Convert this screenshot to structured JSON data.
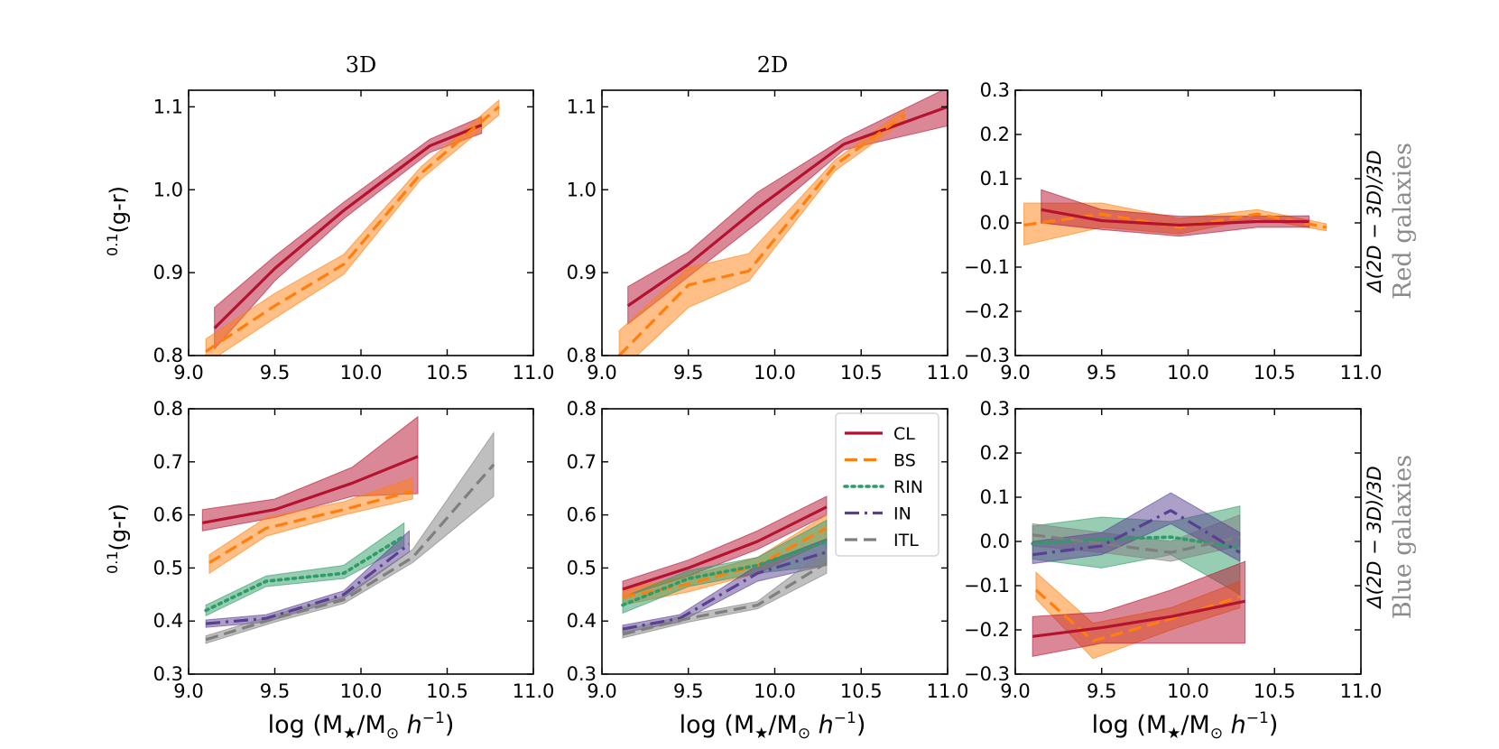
{
  "labels": {
    "col_3d": "3D",
    "col_2d": "2D",
    "ylabel_sup": "0.1",
    "ylabel_main": "(g-r)",
    "xlabel_main": "log (M",
    "xlabel_star": "★",
    "xlabel_mid": "/M",
    "xlabel_sun": "⊙",
    "xlabel_h": " h",
    "xlabel_exp": "−1",
    "xlabel_close": ")",
    "diff_label": "Δ(2D − 3D)/3D",
    "red_group": "Red galaxies",
    "blue_group": "Blue galaxies"
  },
  "legend": [
    {
      "key": "CL",
      "label": "CL"
    },
    {
      "key": "BS",
      "label": "BS"
    },
    {
      "key": "RIN",
      "label": "RIN"
    },
    {
      "key": "IN",
      "label": "IN"
    },
    {
      "key": "ITL",
      "label": "ITL"
    }
  ],
  "styles": {
    "CL": {
      "color": "#b5122f",
      "dash": "",
      "width": 3.2
    },
    "BS": {
      "color": "#ff7f0e",
      "dash": "14,7",
      "width": 3.2
    },
    "RIN": {
      "color": "#2e9c68",
      "dash": "3,5",
      "width": 3.6
    },
    "IN": {
      "color": "#5a3f92",
      "dash": "16,6,3,6",
      "width": 3.2
    },
    "ITL": {
      "color": "#7f7f7f",
      "dash": "14,7",
      "width": 3.2
    }
  },
  "chart_data": [
    {
      "id": "red-3d",
      "type": "line",
      "title": "3D",
      "xlabel": "",
      "ylabel": "0.1(g-r)",
      "xlim": [
        9.0,
        11.0
      ],
      "ylim": [
        0.8,
        1.12
      ],
      "xticks": [
        "9.0",
        "9.5",
        "10.0",
        "10.5",
        "11.0"
      ],
      "yticks": [
        "0.8",
        "0.9",
        "1.0",
        "1.1"
      ],
      "series": [
        {
          "name": "CL",
          "x": [
            9.15,
            9.5,
            9.9,
            10.4,
            10.7
          ],
          "y": [
            0.833,
            0.905,
            0.975,
            1.053,
            1.078
          ],
          "lo": [
            0.808,
            0.89,
            0.965,
            1.045,
            1.068
          ],
          "hi": [
            0.858,
            0.92,
            0.985,
            1.061,
            1.088
          ]
        },
        {
          "name": "BS",
          "x": [
            9.1,
            9.5,
            9.9,
            10.35,
            10.8
          ],
          "y": [
            0.805,
            0.86,
            0.91,
            1.02,
            1.1
          ],
          "lo": [
            0.79,
            0.845,
            0.898,
            1.013,
            1.09
          ],
          "hi": [
            0.82,
            0.875,
            0.922,
            1.028,
            1.108
          ]
        }
      ]
    },
    {
      "id": "red-2d",
      "type": "line",
      "title": "2D",
      "xlabel": "",
      "ylabel": "",
      "xlim": [
        9.0,
        11.0
      ],
      "ylim": [
        0.8,
        1.12
      ],
      "xticks": [
        "9.0",
        "9.5",
        "10.0",
        "10.5",
        "11.0"
      ],
      "yticks": [
        "0.8",
        "0.9",
        "1.0",
        "1.1"
      ],
      "series": [
        {
          "name": "CL",
          "x": [
            9.15,
            9.5,
            9.9,
            10.4,
            11.0
          ],
          "y": [
            0.86,
            0.91,
            0.978,
            1.055,
            1.1
          ],
          "lo": [
            0.838,
            0.895,
            0.96,
            1.048,
            1.077
          ],
          "hi": [
            0.883,
            0.925,
            0.997,
            1.062,
            1.123
          ]
        },
        {
          "name": "BS",
          "x": [
            9.1,
            9.5,
            9.85,
            10.35,
            10.75
          ],
          "y": [
            0.8,
            0.885,
            0.902,
            1.03,
            1.09
          ],
          "lo": [
            0.78,
            0.858,
            0.89,
            1.023,
            1.083
          ],
          "hi": [
            0.83,
            0.906,
            0.923,
            1.036,
            1.097
          ]
        }
      ]
    },
    {
      "id": "red-diff",
      "type": "line",
      "title": "",
      "xlabel": "",
      "ylabel": "Δ(2D − 3D)/3D",
      "xlim": [
        9.0,
        11.0
      ],
      "ylim": [
        -0.3,
        0.3
      ],
      "xticks": [
        "9.0",
        "9.5",
        "10.0",
        "10.5",
        "11.0"
      ],
      "yticks": [
        "−0.3",
        "−0.2",
        "−0.1",
        "0.0",
        "0.1",
        "0.2",
        "0.3"
      ],
      "series": [
        {
          "name": "BS",
          "x": [
            9.05,
            9.5,
            9.95,
            10.4,
            10.8
          ],
          "y": [
            -0.005,
            0.02,
            -0.01,
            0.02,
            -0.01
          ],
          "lo": [
            -0.05,
            -0.01,
            -0.025,
            0.01,
            -0.018
          ],
          "hi": [
            0.045,
            0.045,
            0.01,
            0.03,
            -0.002
          ]
        },
        {
          "name": "CL",
          "x": [
            9.15,
            9.5,
            9.95,
            10.4,
            10.7
          ],
          "y": [
            0.03,
            0.005,
            -0.005,
            0.003,
            0.003
          ],
          "lo": [
            0.0,
            -0.015,
            -0.03,
            -0.01,
            -0.01
          ],
          "hi": [
            0.075,
            0.03,
            0.015,
            0.015,
            0.016
          ]
        }
      ]
    },
    {
      "id": "blue-3d",
      "type": "line",
      "title": "",
      "xlabel": "log (M★/M⊙ h−1)",
      "ylabel": "0.1(g-r)",
      "xlim": [
        9.0,
        11.0
      ],
      "ylim": [
        0.3,
        0.8
      ],
      "xticks": [
        "9.0",
        "9.5",
        "10.0",
        "10.5",
        "11.0"
      ],
      "yticks": [
        "0.3",
        "0.4",
        "0.5",
        "0.6",
        "0.7",
        "0.8"
      ],
      "series": [
        {
          "name": "CL",
          "x": [
            9.08,
            9.5,
            9.95,
            10.33
          ],
          "y": [
            0.585,
            0.61,
            0.66,
            0.71
          ],
          "lo": [
            0.57,
            0.595,
            0.635,
            0.64
          ],
          "hi": [
            0.61,
            0.63,
            0.69,
            0.785
          ]
        },
        {
          "name": "BS",
          "x": [
            9.12,
            9.45,
            9.9,
            10.3
          ],
          "y": [
            0.51,
            0.575,
            0.61,
            0.645
          ],
          "lo": [
            0.49,
            0.56,
            0.6,
            0.63
          ],
          "hi": [
            0.525,
            0.595,
            0.625,
            0.67
          ]
        },
        {
          "name": "RIN",
          "x": [
            9.1,
            9.45,
            9.9,
            10.25
          ],
          "y": [
            0.42,
            0.475,
            0.49,
            0.56
          ],
          "lo": [
            0.41,
            0.465,
            0.48,
            0.54
          ],
          "hi": [
            0.43,
            0.485,
            0.505,
            0.585
          ]
        },
        {
          "name": "IN",
          "x": [
            9.1,
            9.45,
            9.9,
            10.28
          ],
          "y": [
            0.395,
            0.405,
            0.45,
            0.545
          ],
          "lo": [
            0.388,
            0.398,
            0.443,
            0.53
          ],
          "hi": [
            0.402,
            0.412,
            0.457,
            0.57
          ]
        },
        {
          "name": "ITL",
          "x": [
            9.1,
            9.5,
            9.9,
            10.3,
            10.77
          ],
          "y": [
            0.365,
            0.405,
            0.44,
            0.52,
            0.695
          ],
          "lo": [
            0.358,
            0.398,
            0.433,
            0.51,
            0.635
          ],
          "hi": [
            0.372,
            0.412,
            0.447,
            0.535,
            0.755
          ]
        }
      ]
    },
    {
      "id": "blue-2d",
      "type": "line",
      "title": "",
      "xlabel": "log (M★/M⊙ h−1)",
      "ylabel": "",
      "xlim": [
        9.0,
        11.0
      ],
      "ylim": [
        0.3,
        0.8
      ],
      "xticks": [
        "9.0",
        "9.5",
        "10.0",
        "10.5",
        "11.0"
      ],
      "yticks": [
        "0.3",
        "0.4",
        "0.5",
        "0.6",
        "0.7",
        "0.8"
      ],
      "series": [
        {
          "name": "CL",
          "x": [
            9.12,
            9.5,
            9.9,
            10.3
          ],
          "y": [
            0.46,
            0.5,
            0.55,
            0.615
          ],
          "lo": [
            0.445,
            0.485,
            0.535,
            0.6
          ],
          "hi": [
            0.475,
            0.515,
            0.57,
            0.635
          ]
        },
        {
          "name": "BS",
          "x": [
            9.12,
            9.5,
            9.9,
            10.3
          ],
          "y": [
            0.445,
            0.47,
            0.505,
            0.575
          ],
          "lo": [
            0.43,
            0.455,
            0.49,
            0.55
          ],
          "hi": [
            0.46,
            0.485,
            0.52,
            0.6
          ]
        },
        {
          "name": "RIN",
          "x": [
            9.12,
            9.5,
            9.9,
            10.3
          ],
          "y": [
            0.43,
            0.48,
            0.505,
            0.55
          ],
          "lo": [
            0.415,
            0.465,
            0.49,
            0.505
          ],
          "hi": [
            0.445,
            0.495,
            0.52,
            0.59
          ]
        },
        {
          "name": "IN",
          "x": [
            9.12,
            9.45,
            9.9,
            10.3
          ],
          "y": [
            0.385,
            0.405,
            0.49,
            0.53
          ],
          "lo": [
            0.378,
            0.398,
            0.475,
            0.505
          ],
          "hi": [
            0.392,
            0.412,
            0.505,
            0.555
          ]
        },
        {
          "name": "ITL",
          "x": [
            9.12,
            9.5,
            9.9,
            10.3
          ],
          "y": [
            0.375,
            0.405,
            0.43,
            0.51
          ],
          "lo": [
            0.368,
            0.398,
            0.423,
            0.49
          ],
          "hi": [
            0.382,
            0.412,
            0.437,
            0.535
          ]
        }
      ]
    },
    {
      "id": "blue-diff",
      "type": "line",
      "title": "",
      "xlabel": "log (M★/M⊙ h−1)",
      "ylabel": "Δ(2D − 3D)/3D",
      "xlim": [
        9.0,
        11.0
      ],
      "ylim": [
        -0.3,
        0.3
      ],
      "xticks": [
        "9.0",
        "9.5",
        "10.0",
        "10.5",
        "11.0"
      ],
      "yticks": [
        "−0.3",
        "−0.2",
        "−0.1",
        "0.0",
        "0.1",
        "0.2",
        "0.3"
      ],
      "series": [
        {
          "name": "RIN",
          "x": [
            9.1,
            9.5,
            9.9,
            10.3
          ],
          "y": [
            -0.005,
            0.005,
            0.01,
            -0.015
          ],
          "lo": [
            -0.04,
            -0.06,
            -0.03,
            -0.12
          ],
          "hi": [
            0.035,
            0.055,
            0.045,
            0.08
          ]
        },
        {
          "name": "ITL",
          "x": [
            9.1,
            9.5,
            9.9,
            10.3
          ],
          "y": [
            0.015,
            -0.005,
            -0.025,
            0.01
          ],
          "lo": [
            -0.01,
            -0.025,
            -0.045,
            -0.01
          ],
          "hi": [
            0.04,
            0.02,
            0.0,
            0.06
          ]
        },
        {
          "name": "IN",
          "x": [
            9.1,
            9.5,
            9.9,
            10.3
          ],
          "y": [
            -0.03,
            -0.01,
            0.07,
            -0.025
          ],
          "lo": [
            -0.05,
            -0.03,
            0.04,
            -0.045
          ],
          "hi": [
            0.0,
            0.02,
            0.11,
            0.02
          ]
        },
        {
          "name": "BS",
          "x": [
            9.12,
            9.45,
            9.9,
            10.3
          ],
          "y": [
            -0.11,
            -0.225,
            -0.175,
            -0.125
          ],
          "lo": [
            -0.13,
            -0.265,
            -0.2,
            -0.15
          ],
          "hi": [
            -0.07,
            -0.185,
            -0.15,
            -0.09
          ]
        },
        {
          "name": "CL",
          "x": [
            9.1,
            9.5,
            9.9,
            10.33
          ],
          "y": [
            -0.215,
            -0.195,
            -0.17,
            -0.135
          ],
          "lo": [
            -0.26,
            -0.23,
            -0.23,
            -0.23
          ],
          "hi": [
            -0.17,
            -0.16,
            -0.11,
            -0.045
          ]
        }
      ]
    }
  ]
}
